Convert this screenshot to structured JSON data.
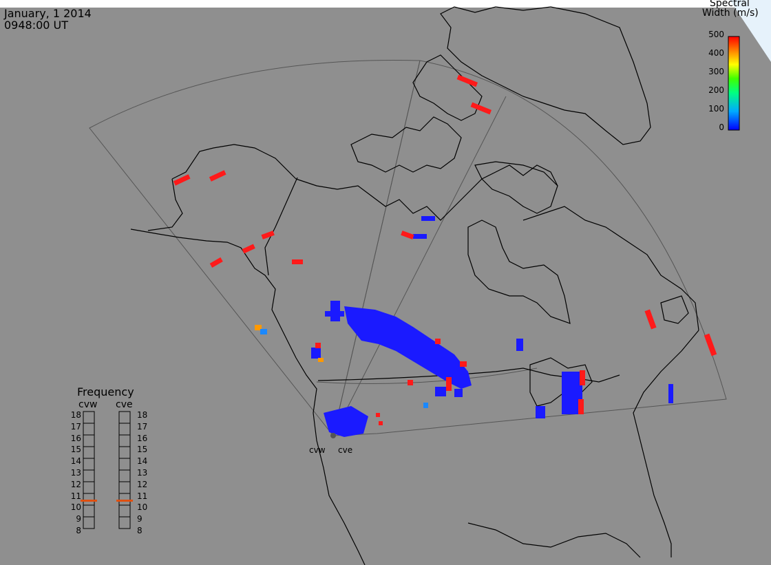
{
  "header": {
    "date": "January, 1 2014",
    "time": "0948:00 UT"
  },
  "colorbar": {
    "title_line1": "Spectral",
    "title_line2": "Width (m/s)",
    "ticks": [
      "500",
      "400",
      "300",
      "200",
      "100",
      "0"
    ],
    "range": [
      0,
      500
    ],
    "colors": [
      "#0000ff",
      "#00aaff",
      "#00ff80",
      "#40ff00",
      "#ffff00",
      "#ff8000",
      "#ff0000"
    ]
  },
  "frequency_panel": {
    "title": "Frequency",
    "radars": [
      {
        "name": "cvw",
        "selected_mhz": 10.5
      },
      {
        "name": "cve",
        "selected_mhz": 10.5
      }
    ],
    "scale": [
      "18",
      "17",
      "16",
      "15",
      "14",
      "13",
      "12",
      "11",
      "10",
      "9",
      "8"
    ]
  },
  "radar_sites": [
    "cvw",
    "cve"
  ],
  "colors": {
    "background": "#8f8f8f",
    "coast": "#000000",
    "fov": "#555555",
    "low_width": "#1a1aff",
    "high_width": "#ff1a1a",
    "mid_width": "#ff9900"
  }
}
